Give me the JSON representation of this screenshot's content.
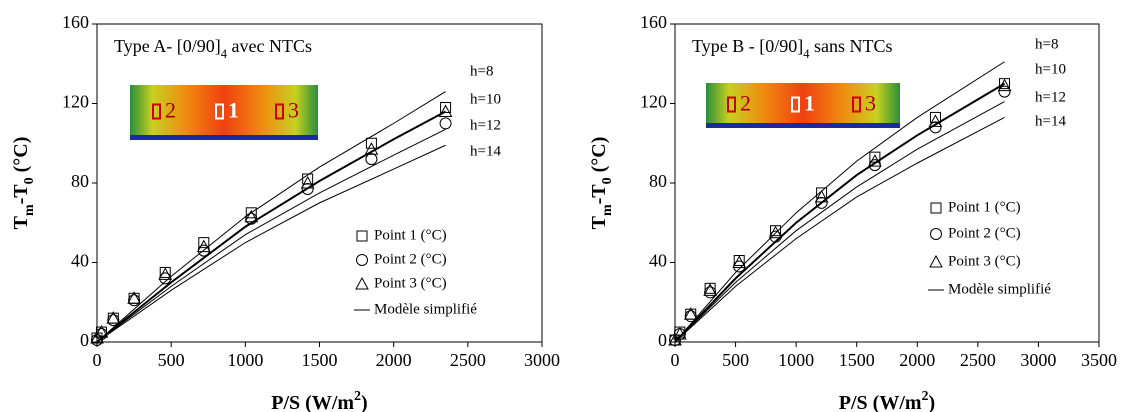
{
  "chart_data": [
    {
      "type": "scatter",
      "title": [
        "Type A- [0/90]",
        "4",
        " avec NTCs"
      ],
      "xlabel": [
        "P/S (W/m",
        "2",
        ")"
      ],
      "ylabel": [
        "T",
        "m",
        "-T",
        "0",
        " (°C)"
      ],
      "inset_labels": [
        "2",
        "1",
        "3"
      ],
      "xlim": [
        0,
        3000
      ],
      "xticks": [
        0,
        500,
        1000,
        1500,
        2000,
        2500,
        3000
      ],
      "ylim": [
        0,
        160
      ],
      "yticks": [
        0,
        40,
        80,
        120,
        160
      ],
      "x": [
        0,
        30,
        110,
        250,
        460,
        720,
        1040,
        1420,
        1850,
        2350
      ],
      "series": [
        {
          "name": "Point 1 (°C)",
          "marker": "square",
          "color": "#000000",
          "values": [
            2,
            5,
            12,
            22,
            35,
            50,
            65,
            82,
            100,
            118
          ]
        },
        {
          "name": "Point 2 (°C)",
          "marker": "circle",
          "color": "#000000",
          "values": [
            1,
            4,
            11,
            21,
            32,
            46,
            62,
            77,
            92,
            110
          ]
        },
        {
          "name": "Point 3 (°C)",
          "marker": "triangle",
          "color": "#000000",
          "values": [
            2,
            5,
            12,
            22,
            34,
            48,
            63,
            80,
            97,
            116
          ]
        }
      ],
      "model": {
        "name": "Modèle simplifié",
        "color": "#000000",
        "x": [
          0,
          500,
          1000,
          1500,
          2000,
          2350
        ],
        "curves": [
          {
            "label": "h=8",
            "width": 1,
            "values": [
              0,
              33,
              63,
              88,
              110,
              126
            ]
          },
          {
            "label": "h=10",
            "width": 2,
            "values": [
              0,
              30,
              58,
              81,
              102,
              116
            ]
          },
          {
            "label": "h=12",
            "width": 1,
            "values": [
              0,
              28,
              54,
              75,
              94,
              107
            ]
          },
          {
            "label": "h=14",
            "width": 1,
            "values": [
              0,
              26,
              50,
              70,
              87,
              99
            ]
          }
        ]
      }
    },
    {
      "type": "scatter",
      "title": [
        "Type B - [0/90]",
        "4",
        " sans NTCs"
      ],
      "xlabel": [
        "P/S (W/m",
        "2",
        ")"
      ],
      "ylabel": [
        "T",
        "m",
        "-T",
        "0",
        " (°C)"
      ],
      "inset_labels": [
        "2",
        "1",
        "3"
      ],
      "xlim": [
        0,
        3500
      ],
      "xticks": [
        0,
        500,
        1000,
        1500,
        2000,
        2500,
        3000,
        3500
      ],
      "ylim": [
        0,
        160
      ],
      "yticks": [
        0,
        40,
        80,
        120,
        160
      ],
      "x": [
        0,
        40,
        130,
        290,
        530,
        830,
        1210,
        1650,
        2150,
        2720
      ],
      "series": [
        {
          "name": "Point 1 (°C)",
          "marker": "square",
          "color": "#000000",
          "values": [
            1,
            5,
            14,
            27,
            41,
            56,
            75,
            93,
            113,
            130
          ]
        },
        {
          "name": "Point 2 (°C)",
          "marker": "circle",
          "color": "#000000",
          "values": [
            1,
            4,
            13,
            25,
            38,
            53,
            70,
            89,
            108,
            126
          ]
        },
        {
          "name": "Point 3 (°C)",
          "marker": "triangle",
          "color": "#000000",
          "values": [
            1,
            4,
            14,
            26,
            40,
            55,
            73,
            91,
            111,
            129
          ]
        }
      ],
      "model": {
        "name": "Modèle simplifié",
        "color": "#000000",
        "x": [
          0,
          500,
          1000,
          1500,
          2000,
          2720
        ],
        "curves": [
          {
            "label": "h=8",
            "width": 1,
            "values": [
              0,
              35,
              65,
              91,
              113,
              141
            ]
          },
          {
            "label": "h=10",
            "width": 2,
            "values": [
              0,
              32,
              60,
              84,
              104,
              130
            ]
          },
          {
            "label": "h=12",
            "width": 1,
            "values": [
              0,
              30,
              56,
              78,
              97,
              121
            ]
          },
          {
            "label": "h=14",
            "width": 1,
            "values": [
              0,
              28,
              52,
              73,
              90,
              113
            ]
          }
        ]
      }
    }
  ]
}
